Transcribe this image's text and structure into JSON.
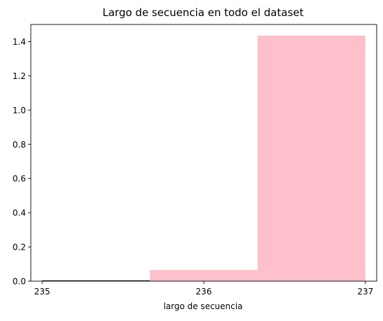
{
  "chart_data": {
    "type": "bar",
    "title": "Largo de secuencia en todo el dataset",
    "xlabel": "largo de secuencia",
    "ylabel": "",
    "xlim": [
      234.93,
      237.07
    ],
    "ylim": [
      0,
      1.5
    ],
    "x_ticks": [
      235,
      236,
      237
    ],
    "x_tick_labels": [
      "235",
      "236",
      "237"
    ],
    "y_ticks": [
      0.0,
      0.2,
      0.4,
      0.6,
      0.8,
      1.0,
      1.2,
      1.4
    ],
    "y_tick_labels": [
      "0.0",
      "0.2",
      "0.4",
      "0.6",
      "0.8",
      "1.0",
      "1.2",
      "1.4"
    ],
    "bins": [
      {
        "x_start": 235.0,
        "x_end": 235.667,
        "value": 0.0
      },
      {
        "x_start": 235.667,
        "x_end": 236.333,
        "value": 0.065
      },
      {
        "x_start": 236.333,
        "x_end": 237.0,
        "value": 1.435
      }
    ],
    "bar_color": "#ffc0cb",
    "grid": false,
    "legend": "none"
  }
}
